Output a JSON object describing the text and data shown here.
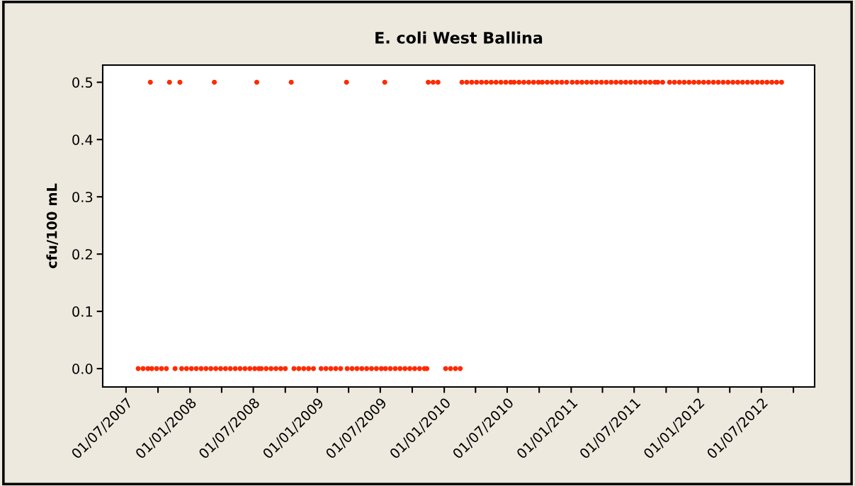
{
  "chart_data": {
    "type": "scatter",
    "title": "E. coli West Ballina",
    "ylabel": "cfu/100 mL",
    "series": [
      {
        "color": "#ff2a00",
        "x": [
          "2007-08-05",
          "2007-08-19",
          "2007-09-02",
          "2007-09-13",
          "2007-09-27",
          "2007-10-11",
          "2007-10-25",
          "2007-11-19",
          "2007-12-08",
          "2007-12-22",
          "2008-01-05",
          "2008-01-19",
          "2008-02-02",
          "2008-02-16",
          "2008-03-01",
          "2008-03-15",
          "2008-03-29",
          "2008-04-12",
          "2008-04-26",
          "2008-05-10",
          "2008-05-24",
          "2008-06-07",
          "2008-06-21",
          "2008-07-05",
          "2008-07-17",
          "2008-07-24",
          "2008-08-07",
          "2008-08-21",
          "2008-09-04",
          "2008-09-18",
          "2008-10-01",
          "2008-10-26",
          "2008-11-09",
          "2008-11-23",
          "2008-12-07",
          "2008-12-21",
          "2009-01-12",
          "2009-01-26",
          "2009-02-09",
          "2009-02-23",
          "2009-03-09",
          "2009-03-28",
          "2009-04-11",
          "2009-04-25",
          "2009-05-09",
          "2009-05-23",
          "2009-06-06",
          "2009-06-20",
          "2009-07-04",
          "2009-07-16",
          "2009-07-30",
          "2009-08-13",
          "2009-08-27",
          "2009-09-10",
          "2009-09-24",
          "2009-10-08",
          "2009-10-22",
          "2009-11-05",
          "2009-11-12",
          "2010-01-05",
          "2010-01-19",
          "2010-02-02",
          "2010-02-16",
          "2007-09-09",
          "2007-11-03",
          "2007-12-03",
          "2008-03-11",
          "2008-07-11",
          "2008-10-18",
          "2009-03-26",
          "2009-07-14",
          "2009-11-16",
          "2009-11-30",
          "2009-12-14",
          "2010-02-21",
          "2010-03-07",
          "2010-03-21",
          "2010-04-04",
          "2010-04-18",
          "2010-05-02",
          "2010-05-16",
          "2010-05-30",
          "2010-06-13",
          "2010-06-27",
          "2010-07-11",
          "2010-07-21",
          "2010-08-04",
          "2010-08-18",
          "2010-09-01",
          "2010-09-15",
          "2010-09-29",
          "2010-10-10",
          "2010-10-24",
          "2010-11-07",
          "2010-11-21",
          "2010-12-05",
          "2010-12-19",
          "2011-01-04",
          "2011-01-18",
          "2011-02-01",
          "2011-02-15",
          "2011-03-01",
          "2011-03-15",
          "2011-03-29",
          "2011-04-12",
          "2011-04-26",
          "2011-05-10",
          "2011-05-24",
          "2011-06-07",
          "2011-06-21",
          "2011-07-05",
          "2011-07-19",
          "2011-08-02",
          "2011-08-16",
          "2011-08-30",
          "2011-09-07",
          "2011-09-21",
          "2011-10-11",
          "2011-10-25",
          "2011-11-08",
          "2011-11-22",
          "2011-12-06",
          "2011-12-20",
          "2012-01-03",
          "2012-01-17",
          "2012-01-31",
          "2012-02-14",
          "2012-02-28",
          "2012-03-13",
          "2012-03-27",
          "2012-04-10",
          "2012-04-24",
          "2012-05-08",
          "2012-05-22",
          "2012-06-05",
          "2012-06-19",
          "2012-07-03",
          "2012-07-17",
          "2012-07-31",
          "2012-08-14",
          "2012-08-28"
        ],
        "values": [
          0,
          0,
          0,
          0,
          0,
          0,
          0,
          0,
          0,
          0,
          0,
          0,
          0,
          0,
          0,
          0,
          0,
          0,
          0,
          0,
          0,
          0,
          0,
          0,
          0,
          0,
          0,
          0,
          0,
          0,
          0,
          0,
          0,
          0,
          0,
          0,
          0,
          0,
          0,
          0,
          0,
          0,
          0,
          0,
          0,
          0,
          0,
          0,
          0,
          0,
          0,
          0,
          0,
          0,
          0,
          0,
          0,
          0,
          0,
          0,
          0,
          0,
          0,
          0.5,
          0.5,
          0.5,
          0.5,
          0.5,
          0.5,
          0.5,
          0.5,
          0.5,
          0.5,
          0.5,
          0.5,
          0.5,
          0.5,
          0.5,
          0.5,
          0.5,
          0.5,
          0.5,
          0.5,
          0.5,
          0.5,
          0.5,
          0.5,
          0.5,
          0.5,
          0.5,
          0.5,
          0.5,
          0.5,
          0.5,
          0.5,
          0.5,
          0.5,
          0.5,
          0.5,
          0.5,
          0.5,
          0.5,
          0.5,
          0.5,
          0.5,
          0.5,
          0.5,
          0.5,
          0.5,
          0.5,
          0.5,
          0.5,
          0.5,
          0.5,
          0.5,
          0.5,
          0.5,
          0.5,
          0.5,
          0.5,
          0.5,
          0.5,
          0.5,
          0.5,
          0.5,
          0.5,
          0.5,
          0.5,
          0.5,
          0.5,
          0.5,
          0.5,
          0.5,
          0.5,
          0.5,
          0.5,
          0.5,
          0.5,
          0.5,
          0.5,
          0.5
        ]
      }
    ],
    "xlim": [
      "2007-04-25",
      "2012-12-01"
    ],
    "xticks": [
      {
        "value": "2007-07-01",
        "label": "01/07/2007"
      },
      {
        "value": "2007-10-01",
        "label": null
      },
      {
        "value": "2008-01-01",
        "label": "01/01/2008"
      },
      {
        "value": "2008-04-01",
        "label": null
      },
      {
        "value": "2008-07-01",
        "label": "01/07/2008"
      },
      {
        "value": "2008-10-01",
        "label": null
      },
      {
        "value": "2009-01-01",
        "label": "01/01/2009"
      },
      {
        "value": "2009-04-01",
        "label": null
      },
      {
        "value": "2009-07-01",
        "label": "01/07/2009"
      },
      {
        "value": "2009-10-01",
        "label": null
      },
      {
        "value": "2010-01-01",
        "label": "01/01/2010"
      },
      {
        "value": "2010-04-01",
        "label": null
      },
      {
        "value": "2010-07-01",
        "label": "01/07/2010"
      },
      {
        "value": "2010-10-01",
        "label": null
      },
      {
        "value": "2011-01-01",
        "label": "01/01/2011"
      },
      {
        "value": "2011-04-01",
        "label": null
      },
      {
        "value": "2011-07-01",
        "label": "01/07/2011"
      },
      {
        "value": "2011-10-01",
        "label": null
      },
      {
        "value": "2012-01-01",
        "label": "01/01/2012"
      },
      {
        "value": "2012-04-01",
        "label": null
      },
      {
        "value": "2012-07-01",
        "label": "01/07/2012"
      },
      {
        "value": "2012-10-01",
        "label": null
      }
    ],
    "ylim": [
      -0.032,
      0.53
    ],
    "yticks": [
      {
        "value": 0,
        "label": "0.0"
      },
      {
        "value": 0.1,
        "label": "0.1"
      },
      {
        "value": 0.2,
        "label": "0.2"
      },
      {
        "value": 0.3,
        "label": "0.3"
      },
      {
        "value": 0.4,
        "label": "0.4"
      },
      {
        "value": 0.5,
        "label": "0.5"
      }
    ],
    "grid": false,
    "legend": false,
    "marker": "circle"
  }
}
